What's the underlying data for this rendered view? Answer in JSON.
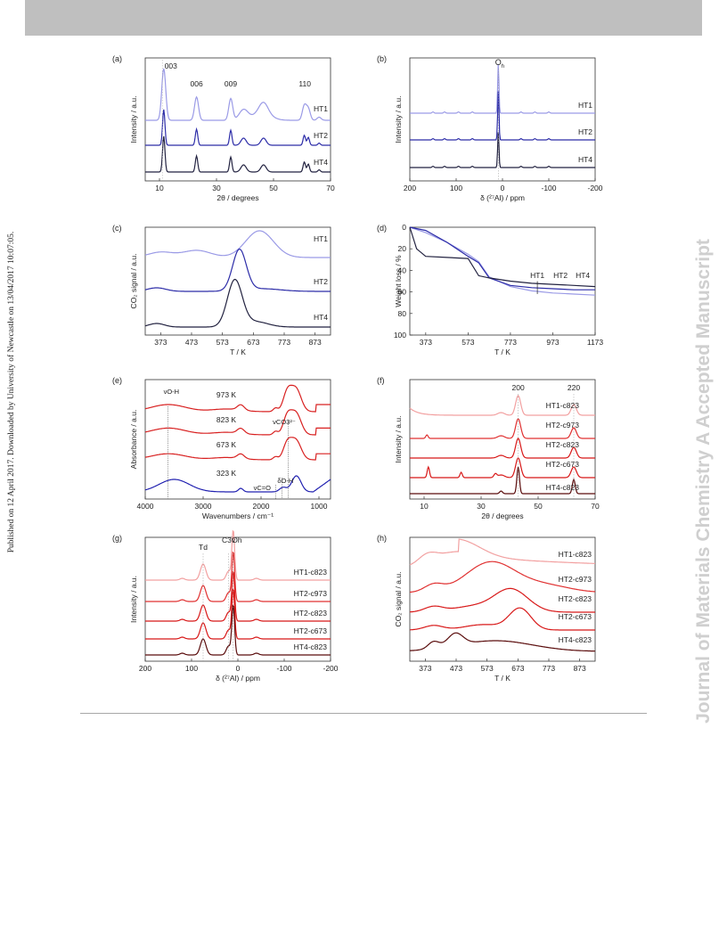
{
  "header": {},
  "side_note": "Published on 12 April 2017. Downloaded by University of Newcastle on 13/04/2017 10:07:05.",
  "watermark": "Journal of Materials Chemistry A Accepted Manuscript",
  "chart_data": [
    {
      "panel": "(a)",
      "type": "line",
      "xlabel": "2θ / degrees",
      "ylabel": "Intensity / a.u.",
      "xlim": [
        5,
        70
      ],
      "xticks": [
        "10",
        "30",
        "50",
        "70"
      ],
      "series": [
        {
          "name": "HT1",
          "color": "#9a9ae6"
        },
        {
          "name": "HT2",
          "color": "#2c2ca8"
        },
        {
          "name": "HT4",
          "color": "#222240"
        }
      ],
      "annotations": [
        "003",
        "006",
        "009",
        "110"
      ]
    },
    {
      "panel": "(b)",
      "type": "line",
      "xlabel": "δ (²⁷Al) / ppm",
      "ylabel": "Intensity / a.u.",
      "xlim": [
        200,
        -200
      ],
      "xticks": [
        "200",
        "100",
        "0",
        "-100",
        "-200"
      ],
      "series": [
        {
          "name": "HT1",
          "color": "#9a9ae6"
        },
        {
          "name": "HT2",
          "color": "#2c2ca8"
        },
        {
          "name": "HT4",
          "color": "#222240"
        }
      ],
      "annotations": [
        "Oh"
      ]
    },
    {
      "panel": "(c)",
      "type": "line",
      "xlabel": "T / K",
      "ylabel": "CO₂ signal / a.u.",
      "xlim": [
        323,
        923
      ],
      "xticks": [
        "373",
        "473",
        "573",
        "673",
        "773",
        "873"
      ],
      "series": [
        {
          "name": "HT1",
          "color": "#9a9ae6",
          "peak_T": 693
        },
        {
          "name": "HT2",
          "color": "#2c2ca8",
          "peak_T": 628
        },
        {
          "name": "HT4",
          "color": "#222240",
          "peak_T": 613
        }
      ]
    },
    {
      "panel": "(d)",
      "type": "line",
      "xlabel": "T / K",
      "ylabel": "Weight loss / %",
      "xlim": [
        298,
        1173
      ],
      "ylim": [
        0,
        100
      ],
      "xticks": [
        "373",
        "573",
        "773",
        "973",
        "1173"
      ],
      "yticks": [
        "0",
        "20",
        "40",
        "60",
        "80",
        "100"
      ],
      "series": [
        {
          "name": "HT1",
          "color": "#9a9ae6",
          "x": [
            298,
            373,
            473,
            573,
            623,
            673,
            773,
            873,
            973,
            1073,
            1173
          ],
          "y": [
            0,
            5,
            14,
            25,
            32,
            46,
            55,
            59,
            61,
            62,
            63
          ]
        },
        {
          "name": "HT2",
          "color": "#2c2ca8",
          "x": [
            298,
            373,
            473,
            573,
            623,
            673,
            773,
            873,
            973,
            1073,
            1173
          ],
          "y": [
            0,
            3,
            14,
            27,
            33,
            47,
            54,
            56,
            57,
            58,
            58
          ]
        },
        {
          "name": "HT4",
          "color": "#222240",
          "x": [
            298,
            330,
            373,
            473,
            573,
            623,
            673,
            773,
            873,
            973,
            1073,
            1173
          ],
          "y": [
            0,
            20,
            27,
            28,
            29,
            45,
            47,
            50,
            52,
            53,
            54,
            55
          ]
        }
      ],
      "annotations": [
        "HT1",
        "HT2",
        "HT4"
      ]
    },
    {
      "panel": "(e)",
      "type": "line",
      "xlabel": "Wavenumbers / cm⁻¹",
      "ylabel": "Absorbance / a.u.",
      "xlim": [
        4000,
        800
      ],
      "xticks": [
        "4000",
        "3000",
        "2000",
        "1000"
      ],
      "series": [
        {
          "name": "973 K",
          "color": "#d82020"
        },
        {
          "name": "823 K",
          "color": "#d82020"
        },
        {
          "name": "673 K",
          "color": "#d82020"
        },
        {
          "name": "323 K",
          "color": "#2020b0"
        }
      ],
      "annotations": [
        "νO-H",
        "νCO3²⁻",
        "δO-H",
        "νC=O"
      ]
    },
    {
      "panel": "(f)",
      "type": "line",
      "xlabel": "2θ / degrees",
      "ylabel": "Intensity / a.u.",
      "xlim": [
        5,
        70
      ],
      "xticks": [
        "10",
        "30",
        "50",
        "70"
      ],
      "series": [
        {
          "name": "HT1-c823",
          "color": "#f2a0a0"
        },
        {
          "name": "HT2-c973",
          "color": "#e03030"
        },
        {
          "name": "HT2-c823",
          "color": "#d81818"
        },
        {
          "name": "HT2-c673",
          "color": "#d81818"
        },
        {
          "name": "HT4-c823",
          "color": "#5a0c0c"
        }
      ],
      "annotations": [
        "200",
        "220"
      ]
    },
    {
      "panel": "(g)",
      "type": "line",
      "xlabel": "δ (²⁷Al) / ppm",
      "ylabel": "Intensity / a.u.",
      "xlim": [
        200,
        -200
      ],
      "xticks": [
        "200",
        "100",
        "0",
        "-100",
        "-200"
      ],
      "series": [
        {
          "name": "HT1-c823",
          "color": "#f2a0a0"
        },
        {
          "name": "HT2-c973",
          "color": "#e03030"
        },
        {
          "name": "HT2-c823",
          "color": "#d81818"
        },
        {
          "name": "HT2-c673",
          "color": "#d81818"
        },
        {
          "name": "HT4-c823",
          "color": "#5a0c0c"
        }
      ],
      "annotations": [
        "Td",
        "C3v",
        "Oh"
      ]
    },
    {
      "panel": "(h)",
      "type": "line",
      "xlabel": "T / K",
      "ylabel": "CO₂ signal / a.u.",
      "xlim": [
        323,
        923
      ],
      "xticks": [
        "373",
        "473",
        "573",
        "673",
        "773",
        "873"
      ],
      "series": [
        {
          "name": "HT1-c823",
          "color": "#f2a0a0"
        },
        {
          "name": "HT2-c973",
          "color": "#e03030"
        },
        {
          "name": "HT2-c823",
          "color": "#d81818"
        },
        {
          "name": "HT2-c673",
          "color": "#d81818"
        },
        {
          "name": "HT4-c823",
          "color": "#5a0c0c"
        }
      ]
    }
  ]
}
